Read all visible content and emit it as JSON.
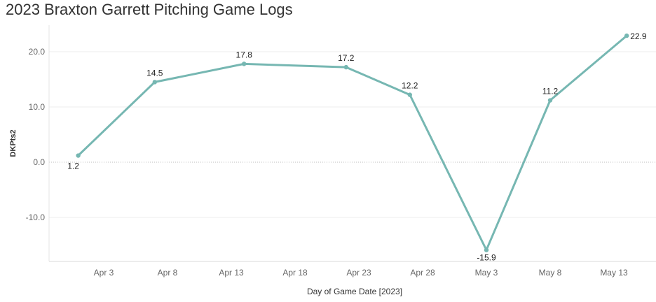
{
  "chart_data": {
    "type": "line",
    "title": "2023 Braxton Garrett Pitching Game Logs",
    "xlabel": "Day of Game Date [2023]",
    "ylabel": "DKPts2",
    "x_ticks": [
      "Apr 3",
      "Apr 8",
      "Apr 13",
      "Apr 18",
      "Apr 23",
      "Apr 28",
      "May 3",
      "May 8",
      "May 13"
    ],
    "y_ticks": [
      "-10.0",
      "0.0",
      "10.0",
      "20.0"
    ],
    "ylim": [
      -17.5,
      25
    ],
    "grid": true,
    "color": "#76b7b2",
    "series": [
      {
        "x": [
          "2023-04-01",
          "2023-04-07",
          "2023-04-14",
          "2023-04-22",
          "2023-04-27",
          "2023-05-03",
          "2023-05-08",
          "2023-05-14"
        ],
        "values": [
          1.2,
          14.5,
          17.8,
          17.2,
          12.2,
          -15.9,
          11.2,
          22.9
        ],
        "labels": [
          "1.2",
          "14.5",
          "17.8",
          "17.2",
          "12.2",
          "-15.9",
          "11.2",
          "22.9"
        ]
      }
    ]
  }
}
